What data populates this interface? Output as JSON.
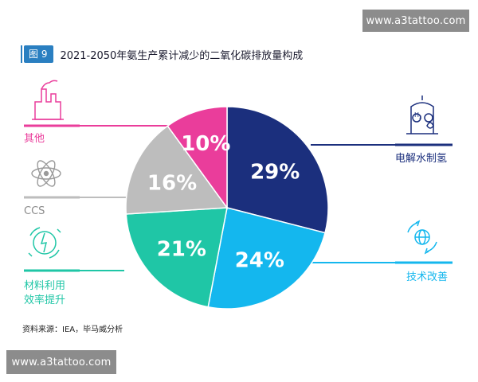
{
  "watermark": "www.a3tattoo.com",
  "figure": {
    "tag": "图 9",
    "title": "2021-2050年氨生产累计减少的二氧化碳排放量构成"
  },
  "source": "资料来源：IEA，毕马威分析",
  "chart_data": {
    "type": "pie",
    "title": "2021-2050年氨生产累计减少的二氧化碳排放量构成",
    "slices": [
      {
        "label": "电解水制氢",
        "value": 29,
        "display": "29%",
        "color": "#1b2f7d"
      },
      {
        "label": "技术改善",
        "value": 24,
        "display": "24%",
        "color": "#14b7ee"
      },
      {
        "label": "材料利用效率提升",
        "value": 21,
        "display": "21%",
        "color": "#1fc6a6"
      },
      {
        "label": "CCS",
        "value": 16,
        "display": "16%",
        "color": "#bdbdbd"
      },
      {
        "label": "其他",
        "value": 10,
        "display": "10%",
        "color": "#ea3d9b"
      }
    ],
    "legend_labels": {
      "other": "其他",
      "ccs": "CCS",
      "material_line1": "材料利用",
      "material_line2": "效率提升",
      "electrolysis": "电解水制氢",
      "tech": "技术改善"
    }
  },
  "icons": {
    "other": "factory-icon",
    "ccs": "atom-icon",
    "material": "recycle-energy-icon",
    "electrolysis": "h2-electrolysis-icon",
    "tech": "globe-cycle-icon"
  },
  "colors": {
    "accent": "#2a7fc1",
    "other": "#ea3d9b",
    "ccs": "#bdbdbd",
    "material": "#1fc6a6",
    "electrolysis": "#1b2f7d",
    "tech": "#14b7ee"
  }
}
